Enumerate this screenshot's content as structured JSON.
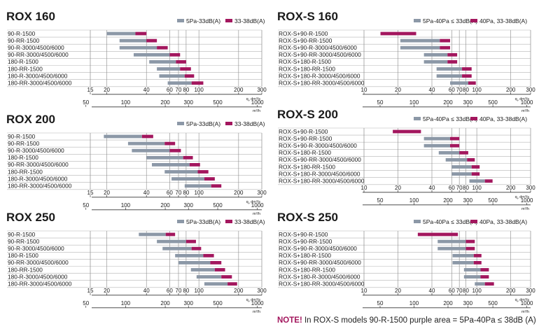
{
  "colors": {
    "gray": "#8c98a7",
    "purple": "#a3175e",
    "grid": "#8a8a8a",
    "text": "#1a1a1a"
  },
  "axes": {
    "rox_top_ticks": [
      "15",
      "20",
      "40",
      "60",
      "70",
      "80",
      "100",
      "200",
      "300"
    ],
    "rox_bottom_ticks": [
      "50",
      "100",
      "200",
      "300",
      "500",
      "1000"
    ],
    "roxs_top_ticks": [
      "10",
      "20",
      "40",
      "60",
      "70",
      "80",
      "100",
      "200",
      "300"
    ],
    "roxs_bottom_ticks": [
      "50",
      "100",
      "200",
      "300",
      "500",
      "1000"
    ],
    "unit_top": "q dm³/s",
    "unit_top_main": "q",
    "unit_top_sub": "v",
    "unit_top_rest": "dm³/s",
    "unit_bottom": "m³/h"
  },
  "chart_data": [
    {
      "type": "bar",
      "title": "ROX 160",
      "legend": [
        "5Pa-33dB(A)",
        "33-38dB(A)"
      ],
      "xlabel": "q dm³/s",
      "xlim": [
        15,
        300
      ],
      "rows": [
        {
          "label": "90-R-1500",
          "gray": [
            20,
            33
          ],
          "purple": [
            33,
            40
          ]
        },
        {
          "label": "90-RR-1500",
          "gray": [
            25,
            40
          ],
          "purple": [
            40,
            48
          ]
        },
        {
          "label": "90-R-3000/4500/6000",
          "gray": [
            25,
            48
          ],
          "purple": [
            48,
            58
          ]
        },
        {
          "label": "90-RR-3000/4500/6000",
          "gray": [
            32,
            60
          ],
          "purple": [
            60,
            72
          ]
        },
        {
          "label": "180-R-1500",
          "gray": [
            42,
            67
          ],
          "purple": [
            67,
            80
          ]
        },
        {
          "label": "180-RR-1500",
          "gray": [
            48,
            72
          ],
          "purple": [
            72,
            87
          ]
        },
        {
          "label": "180-R-3000/4500/6000",
          "gray": [
            50,
            78
          ],
          "purple": [
            78,
            92
          ]
        },
        {
          "label": "180-RR-3000/4500/6000",
          "gray": [
            58,
            88
          ],
          "purple": [
            88,
            108
          ]
        }
      ]
    },
    {
      "type": "bar",
      "title": "ROX-S 160",
      "legend": [
        "5Pa-40Pa ≤ 33dB(A)",
        "40Pa, 33-38dB(A)"
      ],
      "xlabel": "q dm³/s",
      "xlim": [
        10,
        300
      ],
      "rows": [
        {
          "label": "ROX-S+90-R-1500",
          "gray": [
            14,
            14
          ],
          "purple": [
            14,
            29
          ]
        },
        {
          "label": "ROX-S+90-RR-1500",
          "gray": [
            21,
            47
          ],
          "purple": [
            47,
            58
          ]
        },
        {
          "label": "ROX-S+90-R-3000/4500/6000",
          "gray": [
            21,
            47
          ],
          "purple": [
            47,
            58
          ]
        },
        {
          "label": "ROX-S+90-RR-3000/4500/6000",
          "gray": [
            34,
            55
          ],
          "purple": [
            55,
            67
          ]
        },
        {
          "label": "ROX-S+180-R-1500",
          "gray": [
            34,
            55
          ],
          "purple": [
            55,
            67
          ]
        },
        {
          "label": "ROX-S+180-RR-1500",
          "gray": [
            44,
            74
          ],
          "purple": [
            74,
            90
          ]
        },
        {
          "label": "ROX-S+180-R-3000/4500/6000",
          "gray": [
            44,
            74
          ],
          "purple": [
            74,
            90
          ]
        },
        {
          "label": "ROX-S+180-RR-3000/4500/6000",
          "gray": [
            58,
            84
          ],
          "purple": [
            84,
            98
          ]
        }
      ]
    },
    {
      "type": "bar",
      "title": "ROX 200",
      "legend": [
        "5Pa-33dB(A)",
        "33-38dB(A)"
      ],
      "xlabel": "q dm³/s",
      "xlim": [
        15,
        300
      ],
      "rows": [
        {
          "label": "90-R-1500",
          "gray": [
            19,
            37
          ],
          "purple": [
            37,
            45
          ]
        },
        {
          "label": "90-RR-1500",
          "gray": [
            29,
            55
          ],
          "purple": [
            55,
            66
          ]
        },
        {
          "label": "90-R-3000/4500/6000",
          "gray": [
            31,
            60
          ],
          "purple": [
            60,
            73
          ]
        },
        {
          "label": "180-R-1500",
          "gray": [
            40,
            76
          ],
          "purple": [
            76,
            90
          ]
        },
        {
          "label": "90-RR-3000/4500/6000",
          "gray": [
            44,
            85
          ],
          "purple": [
            85,
            102
          ]
        },
        {
          "label": "180-RR-1500",
          "gray": [
            55,
            98
          ],
          "purple": [
            98,
            118
          ]
        },
        {
          "label": "180-R-3000/4500/6000",
          "gray": [
            62,
            110
          ],
          "purple": [
            110,
            132
          ]
        },
        {
          "label": "180-RR-3000/4500/6000",
          "gray": [
            78,
            124
          ],
          "purple": [
            124,
            148
          ]
        }
      ]
    },
    {
      "type": "bar",
      "title": "ROX-S 200",
      "legend": [
        "5Pa-40Pa ≤ 33dB(A)",
        "40Pa, 33-38dB(A)"
      ],
      "xlabel": "q dm³/s",
      "xlim": [
        10,
        300
      ],
      "rows": [
        {
          "label": "ROX-S+90-R-1500",
          "gray": [
            18,
            18
          ],
          "purple": [
            18,
            32
          ]
        },
        {
          "label": "ROX-S+90-RR-1500",
          "gray": [
            34,
            58
          ],
          "purple": [
            58,
            70
          ]
        },
        {
          "label": "ROX-S+90-R-3000/4500/6000",
          "gray": [
            34,
            58
          ],
          "purple": [
            58,
            70
          ]
        },
        {
          "label": "ROX-S+180-R-1500",
          "gray": [
            46,
            70
          ],
          "purple": [
            70,
            84
          ]
        },
        {
          "label": "ROX-S+90-RR-3000/4500/6000",
          "gray": [
            53,
            82
          ],
          "purple": [
            82,
            96
          ]
        },
        {
          "label": "ROX-S+180-RR-1500",
          "gray": [
            60,
            90
          ],
          "purple": [
            90,
            106
          ]
        },
        {
          "label": "ROX-S+180-R-3000/4500/6000",
          "gray": [
            60,
            90
          ],
          "purple": [
            90,
            106
          ]
        },
        {
          "label": "ROX-S+180-RR-3000/4500/6000",
          "gray": [
            86,
            118
          ],
          "purple": [
            118,
            138
          ]
        }
      ]
    },
    {
      "type": "bar",
      "title": "ROX 250",
      "legend": [
        "5Pa-33dB(A)",
        "33-38dB(A)"
      ],
      "xlabel": "q dm³/s",
      "xlim": [
        15,
        300
      ],
      "rows": [
        {
          "label": "90-R-1500",
          "gray": [
            35,
            56
          ],
          "purple": [
            56,
            66
          ]
        },
        {
          "label": "90-RR-1500",
          "gray": [
            48,
            80
          ],
          "purple": [
            80,
            95
          ]
        },
        {
          "label": "90-R-3000/4500/6000",
          "gray": [
            53,
            88
          ],
          "purple": [
            88,
            104
          ]
        },
        {
          "label": "180-R-1500",
          "gray": [
            66,
            108
          ],
          "purple": [
            108,
            130
          ]
        },
        {
          "label": "90-RR-3000/4500/6000",
          "gray": [
            70,
            122
          ],
          "purple": [
            122,
            148
          ]
        },
        {
          "label": "180-RR-1500",
          "gray": [
            87,
            132
          ],
          "purple": [
            132,
            158
          ]
        },
        {
          "label": "180-R-3000/4500/6000",
          "gray": [
            96,
            148
          ],
          "purple": [
            148,
            178
          ]
        },
        {
          "label": "180-RR-3000/4500/6000",
          "gray": [
            110,
            165
          ],
          "purple": [
            165,
            195
          ]
        }
      ]
    },
    {
      "type": "bar",
      "title": "ROX-S 250",
      "legend": [
        "5Pa-40Pa ≤ 33dB(A)",
        "40Pa, 33-38dB(A)"
      ],
      "xlabel": "q dm³/s",
      "xlim": [
        10,
        300
      ],
      "rows": [
        {
          "label": "ROX-S+90-R-1500",
          "gray": [
            30,
            30
          ],
          "purple": [
            30,
            68
          ]
        },
        {
          "label": "ROX-S+90-RR-1500",
          "gray": [
            45,
            80
          ],
          "purple": [
            80,
            96
          ]
        },
        {
          "label": "ROX-S+90-R-3000/4500/6000",
          "gray": [
            45,
            80
          ],
          "purple": [
            80,
            96
          ]
        },
        {
          "label": "ROX-S+180-R-1500",
          "gray": [
            61,
            94
          ],
          "purple": [
            94,
            110
          ]
        },
        {
          "label": "ROX-S+90-RR-3000/4500/6000",
          "gray": [
            61,
            94
          ],
          "purple": [
            94,
            110
          ]
        },
        {
          "label": "ROX-S+180-RR-1500",
          "gray": [
            77,
            108
          ],
          "purple": [
            108,
            128
          ]
        },
        {
          "label": "ROX-S+180-R-3000/4500/6000",
          "gray": [
            77,
            108
          ],
          "purple": [
            108,
            128
          ]
        },
        {
          "label": "ROX-S+180-RR-3000/4500/6000",
          "gray": [
            96,
            118
          ],
          "purple": [
            118,
            142
          ]
        }
      ]
    }
  ],
  "note": {
    "label": "NOTE!",
    "text": "In ROX-S models 90-R-1500 purple area = 5Pa-40Pa ≤ 38dB (A)"
  }
}
